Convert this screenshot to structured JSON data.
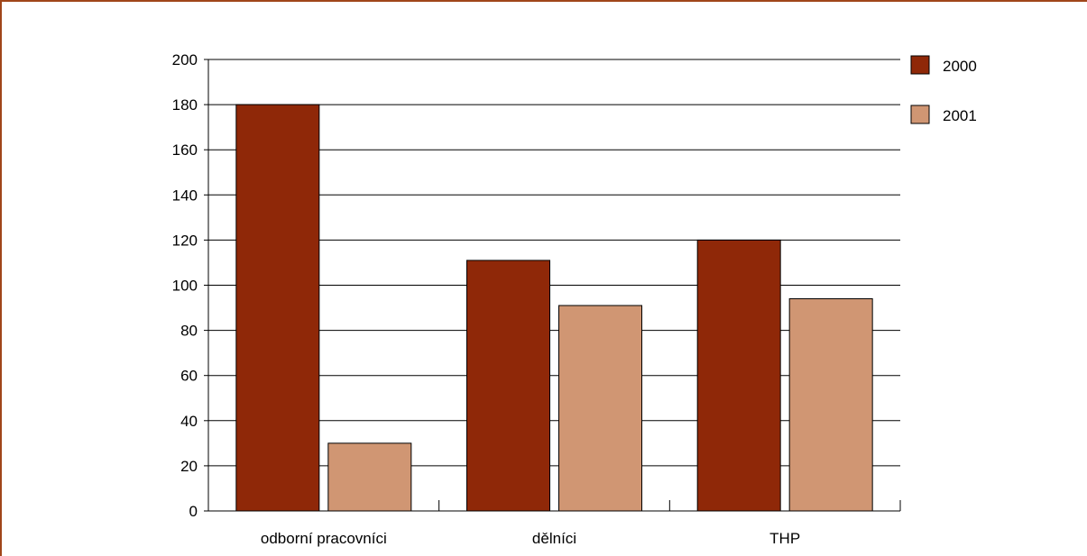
{
  "chart_data": {
    "type": "bar",
    "title": "",
    "xlabel": "",
    "ylabel": "",
    "categories": [
      "odborní pracovníci",
      "dělníci",
      "THP"
    ],
    "series": [
      {
        "name": "2000",
        "values": [
          180,
          111,
          120
        ],
        "color": "#8f2808"
      },
      {
        "name": "2001",
        "values": [
          30,
          91,
          94
        ],
        "color": "#d09673"
      }
    ],
    "ylim": [
      0,
      200
    ],
    "yticks": [
      0,
      20,
      40,
      60,
      80,
      100,
      120,
      140,
      160,
      180,
      200
    ],
    "grid": true,
    "legend_position": "top-right"
  }
}
